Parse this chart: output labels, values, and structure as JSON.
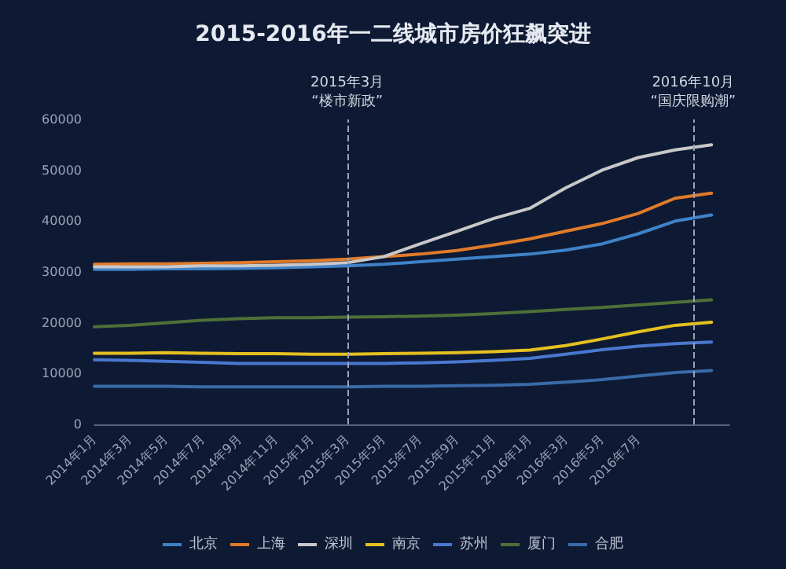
{
  "chart_data": {
    "type": "line",
    "title": "2015-2016年一二线城市房价狂飙突进",
    "x": [
      "2014-01",
      "2014-03",
      "2014-05",
      "2014-07",
      "2014-09",
      "2014-11",
      "2015-01",
      "2015-03",
      "2015-05",
      "2015-07",
      "2015-09",
      "2015-11",
      "2016-01",
      "2016-03",
      "2016-05",
      "2016-07",
      "2016-09",
      "2016-11"
    ],
    "xlim": [
      "2014-01",
      "2016-12"
    ],
    "xticks": [
      {
        "value": "2014-01",
        "label": "2014年1月"
      },
      {
        "value": "2014-03",
        "label": "2014年3月"
      },
      {
        "value": "2014-05",
        "label": "2014年5月"
      },
      {
        "value": "2014-07",
        "label": "2014年7月"
      },
      {
        "value": "2014-09",
        "label": "2014年9月"
      },
      {
        "value": "2014-11",
        "label": "2014年11月"
      },
      {
        "value": "2015-01",
        "label": "2015年1月"
      },
      {
        "value": "2015-03",
        "label": "2015年3月"
      },
      {
        "value": "2015-05",
        "label": "2015年5月"
      },
      {
        "value": "2015-07",
        "label": "2015年7月"
      },
      {
        "value": "2015-09",
        "label": "2015年9月"
      },
      {
        "value": "2015-11",
        "label": "2015年11月"
      },
      {
        "value": "2016-01",
        "label": "2016年1月"
      },
      {
        "value": "2016-03",
        "label": "2016年3月"
      },
      {
        "value": "2016-05",
        "label": "2016年5月"
      },
      {
        "value": "2016-07",
        "label": "2016年7月"
      }
    ],
    "ylim": [
      0,
      60000
    ],
    "yticks": [
      0,
      10000,
      20000,
      30000,
      40000,
      50000,
      60000
    ],
    "series": [
      {
        "name": "北京",
        "color": "#3f82c8",
        "values": [
          30500,
          30500,
          30600,
          30600,
          30700,
          30800,
          31000,
          31200,
          31500,
          32000,
          32500,
          33000,
          33500,
          34300,
          35500,
          37500,
          40000,
          41200
        ]
      },
      {
        "name": "上海",
        "color": "#e07b2a",
        "values": [
          31500,
          31600,
          31600,
          31700,
          31800,
          32000,
          32200,
          32500,
          33000,
          33500,
          34200,
          35300,
          36500,
          38000,
          39500,
          41500,
          44500,
          45500
        ]
      },
      {
        "name": "深圳",
        "color": "#c8c8c8",
        "values": [
          31000,
          31000,
          31000,
          31200,
          31200,
          31300,
          31500,
          31800,
          33000,
          35500,
          38000,
          40500,
          42500,
          46500,
          50000,
          52500,
          54000,
          55000
        ]
      },
      {
        "name": "南京",
        "color": "#e6c020",
        "values": [
          14000,
          14000,
          14100,
          14000,
          13900,
          13900,
          13800,
          13800,
          13900,
          14000,
          14100,
          14300,
          14600,
          15500,
          16800,
          18200,
          19500,
          20100
        ]
      },
      {
        "name": "苏州",
        "color": "#4a78d0",
        "values": [
          12700,
          12600,
          12400,
          12200,
          12000,
          12000,
          12000,
          12000,
          12000,
          12100,
          12300,
          12600,
          13000,
          13800,
          14700,
          15400,
          15900,
          16200
        ]
      },
      {
        "name": "厦门",
        "color": "#4e7038",
        "values": [
          19200,
          19500,
          20000,
          20500,
          20800,
          21000,
          21000,
          21100,
          21200,
          21300,
          21500,
          21800,
          22200,
          22600,
          23000,
          23500,
          24000,
          24500
        ]
      },
      {
        "name": "合肥",
        "color": "#3a6aa8",
        "values": [
          7500,
          7500,
          7500,
          7400,
          7400,
          7400,
          7400,
          7400,
          7500,
          7500,
          7600,
          7700,
          7900,
          8300,
          8800,
          9500,
          10200,
          10600
        ]
      }
    ],
    "ref_lines": [
      {
        "axis": "x",
        "value": "2015-03",
        "label": "2015年3月\n“楼市新政”",
        "color": "#9aa4b8",
        "line_style": "dashed"
      },
      {
        "axis": "x",
        "value": "2016-10",
        "label": "2016年10月\n“国庆限购潮”",
        "color": "#9aa4b8",
        "line_style": "dashed"
      }
    ],
    "legend": "bottom",
    "grid": false,
    "marker": "none",
    "line_style": "solid"
  }
}
